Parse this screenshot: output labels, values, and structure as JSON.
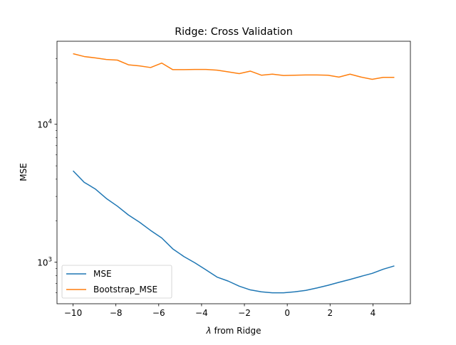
{
  "chart_data": {
    "type": "line",
    "title": "Ridge: Cross Validation",
    "xlabel_symbol": "λ",
    "xlabel_text": " from Ridge",
    "ylabel": "MSE",
    "yscale": "log",
    "xlim": [
      -10.75,
      5.75
    ],
    "ylim": [
      500,
      40000
    ],
    "xticks": [
      -10,
      -8,
      -6,
      -4,
      -2,
      0,
      2,
      4
    ],
    "xtick_labels": [
      "−10",
      "−8",
      "−6",
      "−4",
      "−2",
      "0",
      "2",
      "4"
    ],
    "yticks_major": [
      1000,
      10000
    ],
    "ytick_major_labels": [
      {
        "base": "10",
        "exp": "3"
      },
      {
        "base": "10",
        "exp": "4"
      }
    ],
    "yticks_minor": [
      600,
      700,
      800,
      900,
      2000,
      3000,
      4000,
      5000,
      6000,
      7000,
      8000,
      9000,
      20000,
      30000
    ],
    "grid": false,
    "legend_position": "lower-left",
    "x": [
      -10.0,
      -9.483,
      -8.966,
      -8.448,
      -7.931,
      -7.414,
      -6.897,
      -6.379,
      -5.862,
      -5.345,
      -4.828,
      -4.31,
      -3.793,
      -3.276,
      -2.759,
      -2.241,
      -1.724,
      -1.207,
      -0.69,
      -0.172,
      0.345,
      0.862,
      1.379,
      1.897,
      2.414,
      2.931,
      3.448,
      3.966,
      4.483,
      5.0
    ],
    "series": [
      {
        "name": "MSE",
        "color": "#1f77b4",
        "values": [
          4600,
          3800,
          3400,
          2900,
          2550,
          2200,
          1950,
          1700,
          1500,
          1250,
          1100,
          990,
          880,
          780,
          730,
          670,
          630,
          610,
          600,
          600,
          610,
          625,
          650,
          680,
          715,
          750,
          790,
          830,
          890,
          940
        ]
      },
      {
        "name": "Bootstrap_MSE",
        "color": "#ff7f0e",
        "values": [
          32500,
          31000,
          30300,
          29500,
          29200,
          27000,
          26500,
          25800,
          27800,
          24900,
          24900,
          25000,
          25000,
          24700,
          24000,
          23300,
          24300,
          22700,
          23100,
          22600,
          22700,
          22800,
          22800,
          22700,
          22000,
          23100,
          22000,
          21200,
          21900,
          21900
        ]
      }
    ]
  }
}
